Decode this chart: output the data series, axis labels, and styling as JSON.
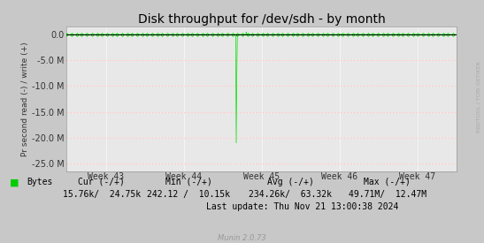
{
  "title": "Disk throughput for /dev/sdh - by month",
  "ylabel": "Pr second read (-) / write (+)",
  "xlabel_ticks": [
    "Week 43",
    "Week 44",
    "Week 45",
    "Week 46",
    "Week 47"
  ],
  "ylim": [
    -26500000,
    1500000
  ],
  "yticks": [
    0,
    -5000000,
    -10000000,
    -15000000,
    -20000000,
    -25000000
  ],
  "bg_color": "#c8c8c8",
  "plot_bg_color": "#e8e8e8",
  "line_color": "#00dd00",
  "legend_label": "Bytes",
  "legend_color": "#00cc00",
  "footer_cols": [
    "Cur (-/+)",
    "Min (-/+)",
    "Avg (-/+)",
    "Max (-/+)"
  ],
  "footer_vals": [
    "15.76k/  24.75k",
    "242.12 /  10.15k",
    "234.26k/  63.32k",
    "49.71M/  12.47M"
  ],
  "footer_update": "Last update: Thu Nov 21 13:00:38 2024",
  "munin_label": "Munin 2.0.73",
  "rrdtool_label": "RRDTOOL / TOBI OETIKER",
  "title_fontsize": 10,
  "tick_fontsize": 7,
  "footer_fontsize": 7
}
